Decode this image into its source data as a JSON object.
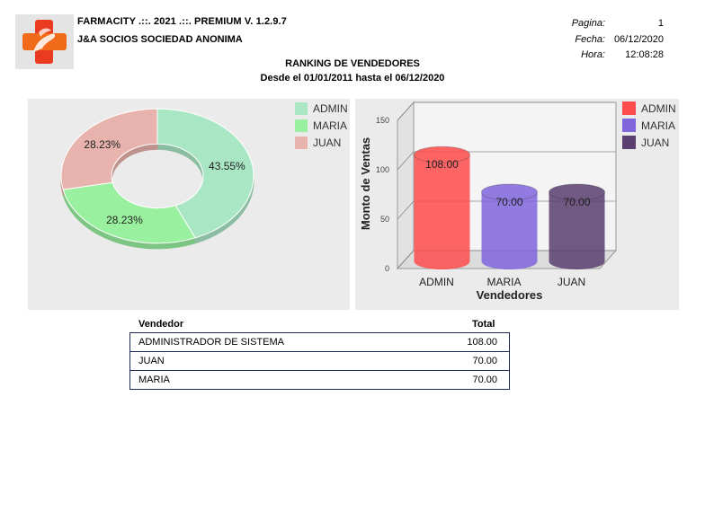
{
  "header": {
    "app_title": "FARMACITY .::. 2021 .::.  PREMIUM  V.  1.2.9.7",
    "company": "J&A SOCIOS SOCIEDAD ANONIMA",
    "pagina_label": "Pagina:",
    "pagina_value": "1",
    "fecha_label": "Fecha:",
    "fecha_value": "06/12/2020",
    "hora_label": "Hora:",
    "hora_value": "12:08:28"
  },
  "report": {
    "title": "RANKING DE VENDEDORES",
    "subtitle": "Desde el 01/01/2011 hasta el 06/12/2020"
  },
  "colors": {
    "admin_pie": "#a8e6c4",
    "maria_pie": "#99f09e",
    "juan_pie": "#e8b3ad",
    "admin_bar": "#ff4d4d",
    "maria_bar": "#8066dd",
    "juan_bar": "#5a3f70",
    "panel_bg": "#ebebeb",
    "table_border": "#1f2a55"
  },
  "chart_data": [
    {
      "type": "pie",
      "labels": [
        "ADMIN",
        "MARIA",
        "JUAN"
      ],
      "values": [
        43.55,
        28.23,
        28.23
      ],
      "value_labels": [
        "43.55%",
        "28.23%",
        "28.23%"
      ],
      "legend": [
        "ADMIN",
        "MARIA",
        "JUAN"
      ],
      "legend_position": "top-right"
    },
    {
      "type": "bar",
      "categories": [
        "ADMIN",
        "MARIA",
        "JUAN"
      ],
      "values": [
        108,
        70,
        70
      ],
      "value_labels": [
        "108.00",
        "70.00",
        "70.00"
      ],
      "xlabel": "Vendedores",
      "ylabel": "Monto de Ventas",
      "ylim": [
        0,
        150
      ],
      "yticks": [
        "0",
        "50",
        "100",
        "150"
      ],
      "legend": [
        "ADMIN",
        "MARIA",
        "JUAN"
      ],
      "legend_position": "top-right"
    }
  ],
  "table": {
    "col_vendedor": "Vendedor",
    "col_total": "Total",
    "rows": [
      {
        "vendedor": "ADMINISTRADOR DE SISTEMA",
        "total": "108.00"
      },
      {
        "vendedor": "JUAN",
        "total": "70.00"
      },
      {
        "vendedor": "MARIA",
        "total": "70.00"
      }
    ]
  }
}
